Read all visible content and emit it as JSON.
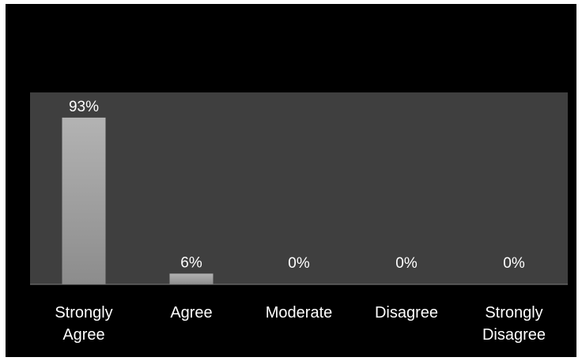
{
  "chart_data": {
    "type": "bar",
    "title": "",
    "xlabel": "",
    "ylabel": "",
    "categories": [
      [
        "Strongly",
        "Agree"
      ],
      [
        "Agree"
      ],
      [
        "Moderate"
      ],
      [
        "Disagree"
      ],
      [
        "Strongly",
        "Disagree"
      ]
    ],
    "values": [
      93,
      6,
      0,
      0,
      0
    ],
    "data_labels": [
      "93%",
      "6%",
      "0%",
      "0%",
      "0%"
    ],
    "ylim": [
      0,
      100
    ],
    "grid": false,
    "legend": "none",
    "colors": {
      "background": "#000000",
      "plot_area": "#3f3f3f",
      "bar_top": "#b3b3b3",
      "bar_bottom": "#8c8c8c",
      "text": "#ffffff",
      "axis_line": "#7f7f7f"
    }
  }
}
